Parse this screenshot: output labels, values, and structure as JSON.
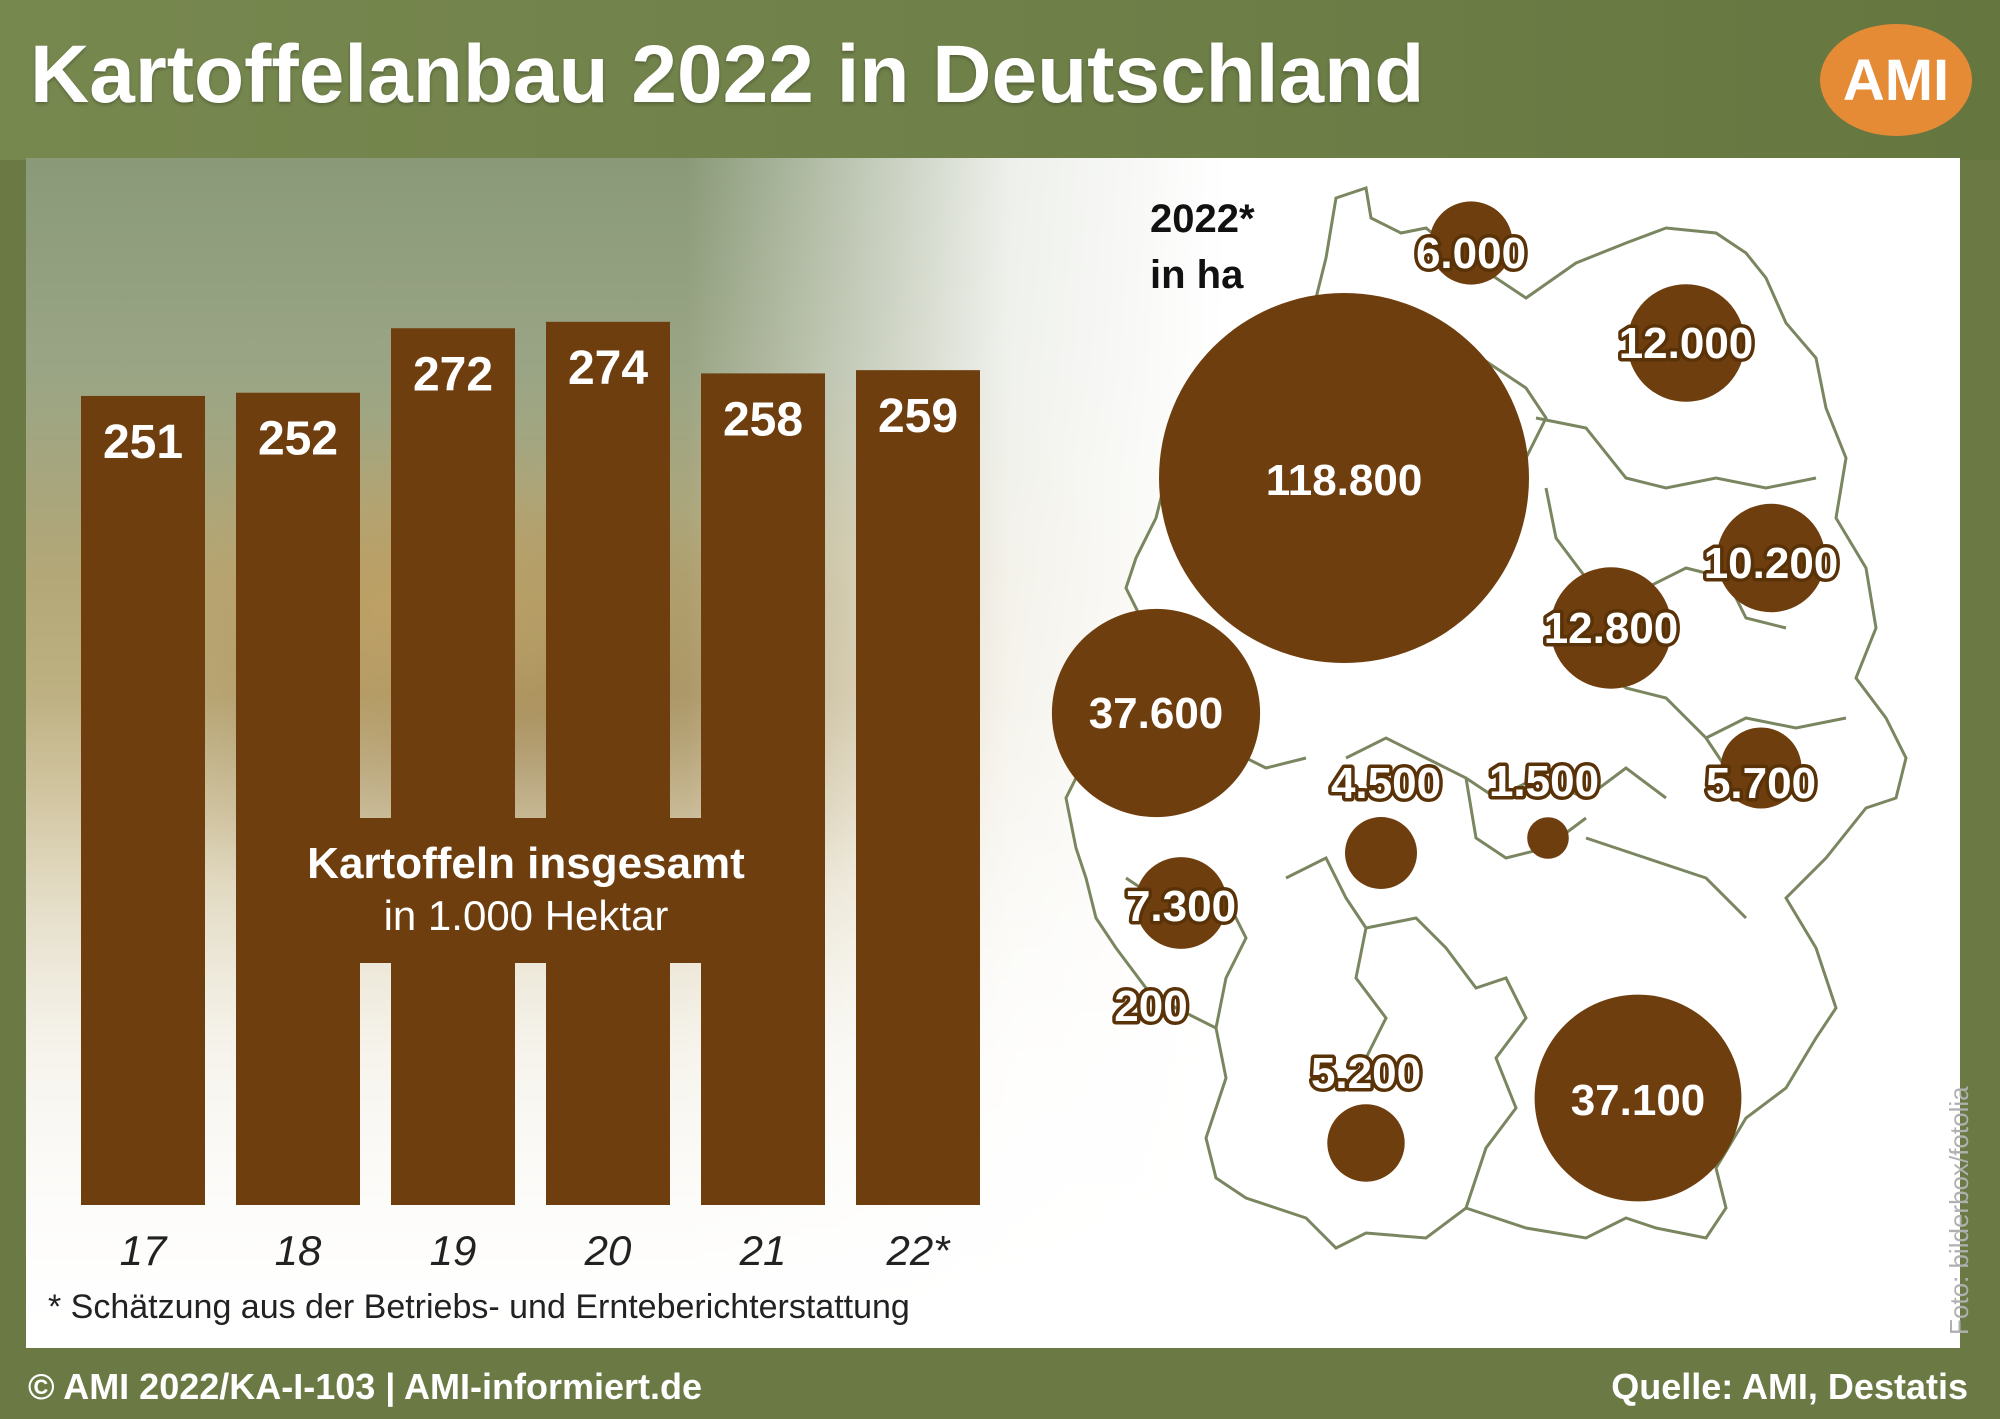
{
  "title": "Kartoffelanbau 2022 in Deutschland",
  "logo_text": "AMI",
  "footnote": "* Schätzung aus der Betriebs- und Ernteberichterstattung",
  "footer": {
    "left": "© AMI 2022/KA-I-103 | AMI-informiert.de",
    "right": "Quelle: AMI, Destatis"
  },
  "photo_credit": "Foto: bilderbox/fotolia",
  "colors": {
    "bar": "#6f3e0e",
    "frame": "#6b7a44",
    "logo": "#e58a35",
    "map_outline": "#7a8660"
  },
  "chart_data": [
    {
      "type": "bar",
      "title": "Kartoffeln insgesamt",
      "subtitle": "in 1.000 Hektar",
      "categories": [
        "17",
        "18",
        "19",
        "20",
        "21",
        "22*"
      ],
      "values": [
        251,
        252,
        272,
        274,
        258,
        259
      ],
      "value_labels": [
        "251",
        "252",
        "272",
        "274",
        "258",
        "259"
      ],
      "ylim": [
        0,
        300
      ]
    },
    {
      "type": "bubble-map",
      "title": "2022*",
      "subtitle": "in ha",
      "regions": [
        {
          "label": "6.000",
          "value": 6000
        },
        {
          "label": "12.000",
          "value": 12000
        },
        {
          "label": "118.800",
          "value": 118800
        },
        {
          "label": "10.200",
          "value": 10200
        },
        {
          "label": "12.800",
          "value": 12800
        },
        {
          "label": "37.600",
          "value": 37600
        },
        {
          "label": "4.500",
          "value": 4500
        },
        {
          "label": "1.500",
          "value": 1500
        },
        {
          "label": "5.700",
          "value": 5700
        },
        {
          "label": "7.300",
          "value": 7300
        },
        {
          "label": "200",
          "value": 200
        },
        {
          "label": "5.200",
          "value": 5200
        },
        {
          "label": "37.100",
          "value": 37100
        }
      ]
    }
  ]
}
